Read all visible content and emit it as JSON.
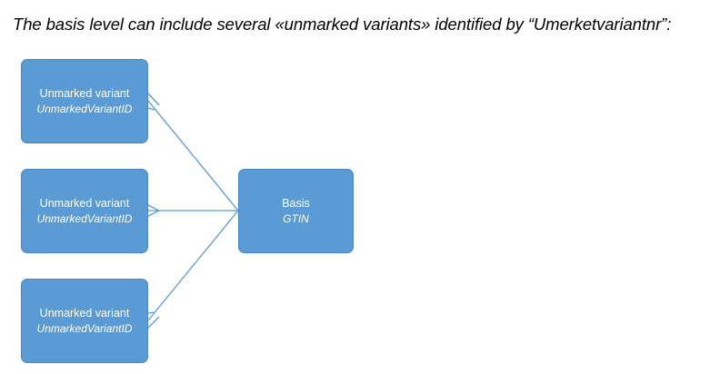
{
  "heading": "The basis level can include several «unmarked variants» identified by “Umerketvariantnr”:",
  "variants": [
    {
      "title": "Unmarked variant",
      "id_label": "UnmarkedVariantID"
    },
    {
      "title": "Unmarked variant",
      "id_label": "UnmarkedVariantID"
    },
    {
      "title": "Unmarked variant",
      "id_label": "UnmarkedVariantID"
    }
  ],
  "basis": {
    "title": "Basis",
    "id_label": "GTIN"
  },
  "colors": {
    "box_fill": "#5b9bd5",
    "box_border": "#4a86bf",
    "connector": "#5b9bd5",
    "box_text": "#ffffff"
  }
}
